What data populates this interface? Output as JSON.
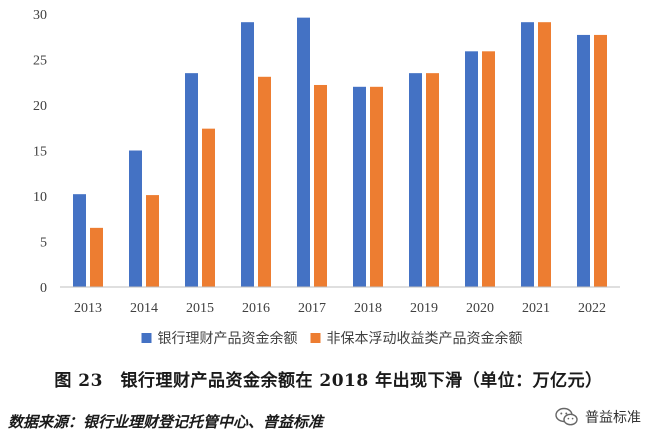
{
  "chart_data": {
    "type": "bar",
    "categories": [
      "2013",
      "2014",
      "2015",
      "2016",
      "2017",
      "2018",
      "2019",
      "2020",
      "2021",
      "2022"
    ],
    "series": [
      {
        "name": "银行理财产品资金余额",
        "values": [
          10.2,
          15.0,
          23.5,
          29.1,
          29.6,
          22.0,
          23.5,
          25.9,
          29.1,
          27.7
        ],
        "color": "#4472C4"
      },
      {
        "name": "非保本浮动收益类产品资金余额",
        "values": [
          6.5,
          10.1,
          17.4,
          23.1,
          22.2,
          22.0,
          23.5,
          25.9,
          29.1,
          27.7
        ],
        "color": "#ED7D31"
      }
    ],
    "ylim": [
      0,
      30
    ],
    "yticks": [
      0,
      5,
      10,
      15,
      20,
      25,
      30
    ],
    "grid": false,
    "legend_position": "bottom"
  },
  "caption": "图 23　银行理财产品资金余额在 2018 年出现下滑（单位：万亿元）",
  "source": "数据来源：银行业理财登记托管中心、普益标准",
  "watermark": {
    "text": "普益标准",
    "icon": "wechat-icon"
  }
}
